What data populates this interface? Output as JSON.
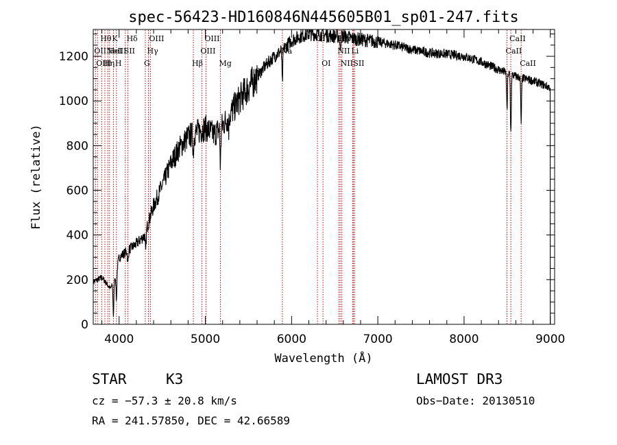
{
  "chart_data": {
    "type": "line",
    "title": "spec-56423-HD160846N445605B01_sp01-247.fits",
    "xlabel": "Wavelength (Å)",
    "ylabel": "Flux (relative)",
    "xlim": [
      3700,
      9050
    ],
    "ylim": [
      0,
      1320
    ],
    "xticks": [
      4000,
      5000,
      6000,
      7000,
      8000,
      9000
    ],
    "yticks": [
      0,
      200,
      400,
      600,
      800,
      1000,
      1200
    ],
    "tick_labels_x": [
      "4000",
      "5000",
      "6000",
      "7000",
      "8000",
      "9000"
    ],
    "tick_labels_y": [
      "0",
      "200",
      "400",
      "600",
      "800",
      "1000",
      "1200"
    ],
    "line_color": "#cc0000",
    "spectrum_color": "#000000",
    "continuum": [
      [
        3700,
        190
      ],
      [
        3800,
        210
      ],
      [
        3900,
        160
      ],
      [
        3950,
        200
      ],
      [
        4000,
        300
      ],
      [
        4100,
        330
      ],
      [
        4200,
        360
      ],
      [
        4300,
        400
      ],
      [
        4350,
        470
      ],
      [
        4400,
        530
      ],
      [
        4500,
        620
      ],
      [
        4600,
        720
      ],
      [
        4700,
        790
      ],
      [
        4800,
        840
      ],
      [
        4900,
        860
      ],
      [
        5000,
        880
      ],
      [
        5100,
        850
      ],
      [
        5200,
        890
      ],
      [
        5300,
        950
      ],
      [
        5400,
        1010
      ],
      [
        5500,
        1060
      ],
      [
        5600,
        1110
      ],
      [
        5700,
        1160
      ],
      [
        5800,
        1200
      ],
      [
        5900,
        1230
      ],
      [
        6000,
        1270
      ],
      [
        6100,
        1290
      ],
      [
        6200,
        1300
      ],
      [
        6300,
        1300
      ],
      [
        6400,
        1295
      ],
      [
        6500,
        1290
      ],
      [
        6600,
        1290
      ],
      [
        6700,
        1280
      ],
      [
        6800,
        1275
      ],
      [
        7000,
        1265
      ],
      [
        7200,
        1250
      ],
      [
        7400,
        1230
      ],
      [
        7600,
        1215
      ],
      [
        7800,
        1210
      ],
      [
        8000,
        1200
      ],
      [
        8200,
        1175
      ],
      [
        8400,
        1140
      ],
      [
        8600,
        1110
      ],
      [
        8800,
        1090
      ],
      [
        9000,
        1060
      ]
    ],
    "absorption": [
      {
        "x": 3934,
        "depth": 150
      },
      {
        "x": 3969,
        "depth": 130
      },
      {
        "x": 4102,
        "depth": 60
      },
      {
        "x": 4308,
        "depth": 90
      },
      {
        "x": 4861,
        "depth": 80
      },
      {
        "x": 5175,
        "depth": 170
      },
      {
        "x": 5270,
        "depth": 60
      },
      {
        "x": 5893,
        "depth": 150
      },
      {
        "x": 6563,
        "depth": 60
      },
      {
        "x": 8498,
        "depth": 170
      },
      {
        "x": 8542,
        "depth": 260
      },
      {
        "x": 8662,
        "depth": 200
      }
    ],
    "lines": [
      {
        "x": 3727,
        "label": "OII",
        "row": 1
      },
      {
        "x": 3750,
        "label": "OIII",
        "row": 2
      },
      {
        "x": 3798,
        "label": "Hθ",
        "row": 0
      },
      {
        "x": 3835,
        "label": "Hη",
        "row": 2
      },
      {
        "x": 3869,
        "label": "NeIII",
        "row": 1
      },
      {
        "x": 3889,
        "label": "HeI",
        "row": 1
      },
      {
        "x": 3934,
        "label": "K",
        "row": 0
      },
      {
        "x": 3969,
        "label": "H",
        "row": 2
      },
      {
        "x": 4072,
        "label": "SII",
        "row": 1
      },
      {
        "x": 4102,
        "label": "Hδ",
        "row": 0
      },
      {
        "x": 4304,
        "label": "G",
        "row": 2
      },
      {
        "x": 4340,
        "label": "Hγ",
        "row": 1
      },
      {
        "x": 4363,
        "label": "OIII",
        "row": 0
      },
      {
        "x": 4861,
        "label": "Hβ",
        "row": 2
      },
      {
        "x": 4959,
        "label": "OIII",
        "row": 1
      },
      {
        "x": 5007,
        "label": "OIII",
        "row": 0
      },
      {
        "x": 5175,
        "label": "Mg",
        "row": 2
      },
      {
        "x": 5893,
        "label": "Na",
        "row": 1
      },
      {
        "x": 6300,
        "label": "OI",
        "row": 0
      },
      {
        "x": 6364,
        "label": "OI",
        "row": 2
      },
      {
        "x": 6548,
        "label": "NII",
        "row": 1
      },
      {
        "x": 6563,
        "label": "Hα",
        "row": 0
      },
      {
        "x": 6583,
        "label": "NII",
        "row": 2
      },
      {
        "x": 6708,
        "label": "Li",
        "row": 1
      },
      {
        "x": 6716,
        "label": "SII",
        "row": 0
      },
      {
        "x": 6731,
        "label": "SII",
        "row": 2
      },
      {
        "x": 8498,
        "label": "CaII",
        "row": 1
      },
      {
        "x": 8542,
        "label": "CaII",
        "row": 0
      },
      {
        "x": 8662,
        "label": "CaII",
        "row": 2
      }
    ]
  },
  "info": {
    "class": "STAR",
    "subclass": "K3",
    "survey": "LAMOST DR3",
    "cz": "cz = −57.3 ± 20.8 km/s",
    "obs_date": "Obs−Date: 20130510",
    "coords": "RA = 241.57850, DEC =  42.66589"
  }
}
